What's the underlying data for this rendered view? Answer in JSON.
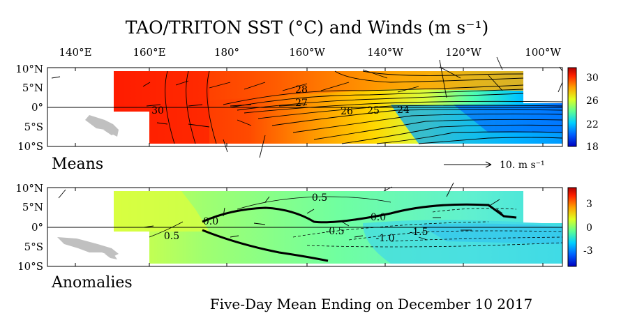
{
  "title": "TAO/TRITON SST (°C) and Winds (m s⁻¹)",
  "lon_labels": [
    "140°E",
    "160°E",
    "180°",
    "160°W",
    "140°W",
    "120°W",
    "100°W"
  ],
  "lat_labels": [
    "10°N",
    "5°N",
    "0°",
    "5°S",
    "10°S"
  ],
  "means": {
    "label": "Means",
    "colorbar_ticks": [
      "30",
      "26",
      "22",
      "18"
    ],
    "contour_labels": [
      "28",
      "27",
      "30",
      "26",
      "25",
      "24"
    ],
    "scale_label": "10.  m s⁻¹"
  },
  "anomalies": {
    "label": "Anomalies",
    "colorbar_ticks": [
      "3",
      "0",
      "-3"
    ],
    "contour_labels": [
      "0.5",
      "0.0",
      "0.0",
      "-0.5",
      "-1.0",
      "-1.5",
      "0.5"
    ]
  },
  "footer": "Five-Day Mean Ending on December 10 2017",
  "colors": {
    "land": "#c0c0c0",
    "sst_warm": "#ff2a00",
    "sst_mid": "#ffd400",
    "sst_cool": "#00a0ff",
    "anom_base": "#7dffb0"
  }
}
